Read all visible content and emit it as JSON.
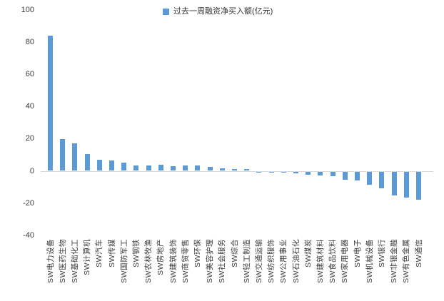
{
  "chart_data": {
    "type": "bar",
    "title": "",
    "legend_label": "过去一周融资净买入额(亿元)",
    "legend_position": "top-center",
    "grid": false,
    "bar_color": "#5B9BD5",
    "axis_line_color": "#D9D9D9",
    "text_color": "#3A3A3A",
    "ylim": [
      -40,
      100
    ],
    "yticks": [
      100,
      80,
      60,
      40,
      20,
      0,
      -20,
      -40
    ],
    "xlabel": "",
    "ylabel": "",
    "categories": [
      "SW电力设备",
      "SW医药生物",
      "SW基础化工",
      "SW计算机",
      "SW汽车",
      "SW传媒",
      "SW国防军工",
      "SW钢铁",
      "SW农林牧渔",
      "SW房地产",
      "SW建筑装饰",
      "SW商贸零售",
      "SW环保",
      "SW美容护理",
      "SW社会服务",
      "SW综合",
      "SW轻工制造",
      "SW交通运输",
      "SW纺织服饰",
      "SW公用事业",
      "SW石油石化",
      "SW煤炭",
      "SW建筑材料",
      "SW食品饮料",
      "SW家用电器",
      "SW电子",
      "SW机械设备",
      "SW银行",
      "SW非银金融",
      "SW有色金属",
      "SW通信"
    ],
    "values": [
      83.8,
      19.5,
      17.1,
      10.4,
      6.8,
      6.3,
      5.1,
      3.5,
      3.5,
      3.6,
      2.9,
      3.2,
      3.1,
      2.4,
      1.7,
      0.9,
      0.9,
      -0.1,
      -0.8,
      -0.8,
      -1.0,
      -1.8,
      -2.4,
      -2.8,
      -5.2,
      -5.5,
      -8.0,
      -10.2,
      -15.0,
      -16.2,
      -17.5
    ]
  }
}
